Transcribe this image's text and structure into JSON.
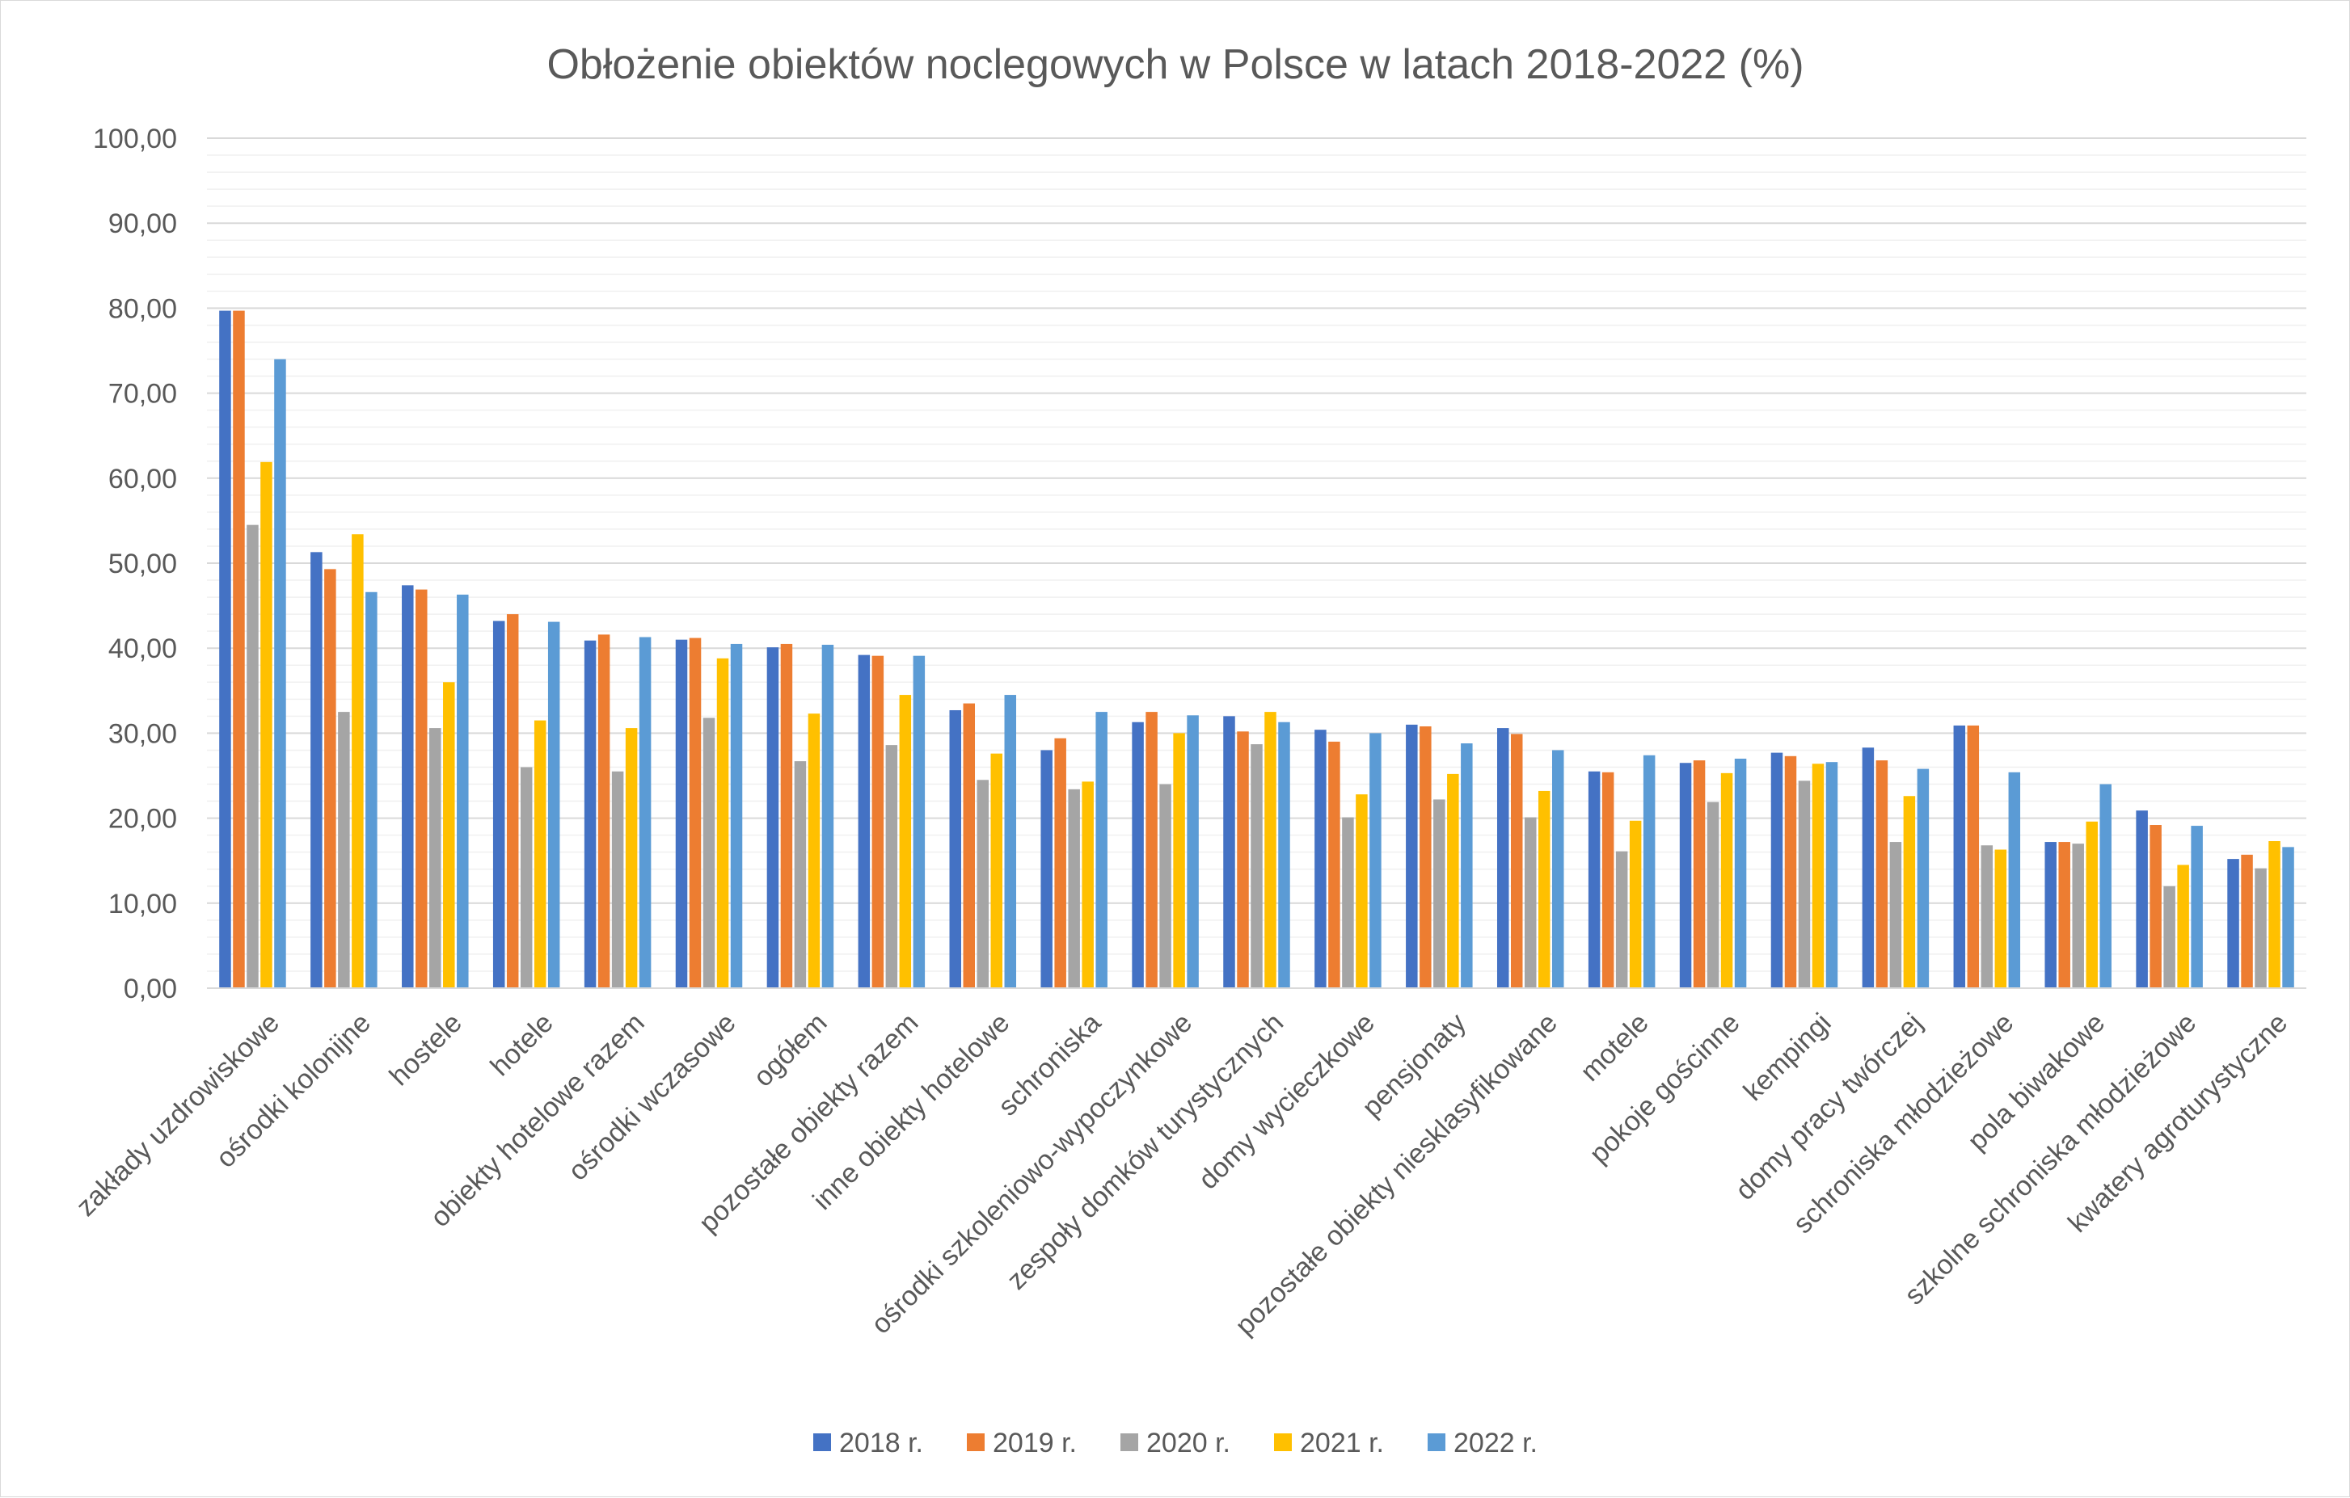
{
  "chart_data": {
    "type": "bar",
    "title": "Obłożenie obiektów noclegowych w Polsce w latach 2018-2022 (%)",
    "xlabel": "",
    "ylabel": "",
    "ylim": [
      0,
      100
    ],
    "yticks": [
      "0,00",
      "10,00",
      "20,00",
      "30,00",
      "40,00",
      "50,00",
      "60,00",
      "70,00",
      "80,00",
      "90,00",
      "100,00"
    ],
    "grid": true,
    "legend_position": "bottom",
    "categories": [
      "zakłady uzdrowiskowe",
      "ośrodki kolonijne",
      "hostele",
      "hotele",
      "obiekty hotelowe razem",
      "ośrodki wczasowe",
      "ogółem",
      "pozostałe obiekty razem",
      "inne obiekty hotelowe",
      "schroniska",
      "ośrodki szkoleniowo-wypoczynkowe",
      "zespoły domków turystycznych",
      "domy wycieczkowe",
      "pensjonaty",
      "pozostałe obiekty niesklasyfikowane",
      "motele",
      "pokoje gościnne",
      "kempingi",
      "domy pracy twórczej",
      "schroniska młodzieżowe",
      "pola biwakowe",
      "szkolne schroniska młodzieżowe",
      "kwatery agroturystyczne"
    ],
    "series": [
      {
        "name": "2018 r.",
        "color": "#4472C4",
        "values": [
          79.7,
          51.3,
          47.4,
          43.2,
          40.9,
          41.0,
          40.1,
          39.2,
          32.7,
          28.0,
          31.3,
          32.0,
          30.4,
          31.0,
          30.6,
          25.5,
          26.5,
          27.7,
          28.3,
          30.9,
          17.2,
          20.9,
          15.2
        ]
      },
      {
        "name": "2019 r.",
        "color": "#ED7D31",
        "values": [
          79.7,
          49.3,
          46.9,
          44.0,
          41.6,
          41.2,
          40.5,
          39.1,
          33.5,
          29.4,
          32.5,
          30.2,
          29.0,
          30.8,
          29.9,
          25.4,
          26.8,
          27.3,
          26.8,
          30.9,
          17.2,
          19.2,
          15.7
        ]
      },
      {
        "name": "2020 r.",
        "color": "#A5A5A5",
        "values": [
          54.5,
          32.5,
          30.6,
          26.0,
          25.5,
          31.8,
          26.7,
          28.6,
          24.5,
          23.4,
          24.0,
          28.7,
          20.1,
          22.2,
          20.1,
          16.1,
          21.9,
          24.4,
          17.2,
          16.8,
          17.0,
          12.0,
          14.1
        ]
      },
      {
        "name": "2021 r.",
        "color": "#FFC000",
        "values": [
          61.9,
          53.4,
          36.0,
          31.5,
          30.6,
          38.8,
          32.3,
          34.5,
          27.6,
          24.3,
          30.0,
          32.5,
          22.8,
          25.2,
          23.2,
          19.7,
          25.3,
          26.4,
          22.6,
          16.3,
          19.6,
          14.5,
          17.3
        ]
      },
      {
        "name": "2022 r.",
        "color": "#5B9BD5",
        "values": [
          74.0,
          46.6,
          46.3,
          43.1,
          41.3,
          40.5,
          40.4,
          39.1,
          34.5,
          32.5,
          32.1,
          31.3,
          30.0,
          28.8,
          28.0,
          27.4,
          27.0,
          26.6,
          25.8,
          25.4,
          24.0,
          19.1,
          16.6
        ]
      }
    ]
  }
}
